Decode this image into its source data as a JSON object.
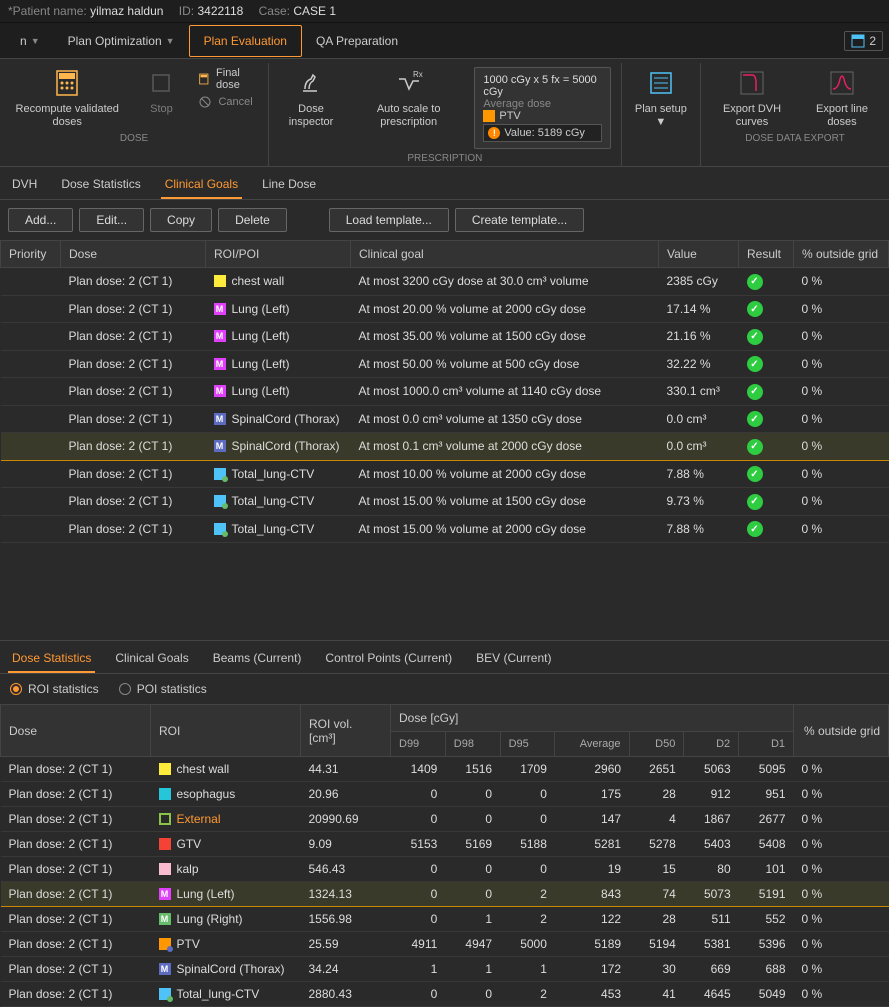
{
  "patient": {
    "name_label": "*Patient name:",
    "name": "yilmaz haldun",
    "id_label": "ID:",
    "id": "3422118",
    "case_label": "Case:",
    "case": "CASE 1"
  },
  "nav": {
    "opt": "Plan Optimization",
    "eval": "Plan Evaluation",
    "qa": "QA Preparation",
    "badge_count": "2"
  },
  "ribbon": {
    "recompute": "Recompute validated doses",
    "stop": "Stop",
    "final_dose": "Final dose",
    "cancel": "Cancel",
    "dose_label": "DOSE",
    "dose_inspector": "Dose inspector",
    "auto_scale": "Auto scale to prescription",
    "prescription_label": "PRESCRIPTION",
    "rx_line": "1000 cGy x 5 fx = 5000 cGy",
    "avg_dose": "Average dose",
    "ptv": "PTV",
    "value_line": "Value: 5189 cGy",
    "plan_setup": "Plan setup",
    "export_dvh": "Export DVH curves",
    "export_line": "Export line doses",
    "export_label": "DOSE DATA EXPORT"
  },
  "sub_tabs": {
    "dvh": "DVH",
    "dose_stats": "Dose Statistics",
    "clinical_goals": "Clinical Goals",
    "line_dose": "Line Dose"
  },
  "actions": {
    "add": "Add...",
    "edit": "Edit...",
    "copy": "Copy",
    "delete": "Delete",
    "load": "Load template...",
    "create": "Create template..."
  },
  "goals_headers": {
    "priority": "Priority",
    "dose": "Dose",
    "roi": "ROI/POI",
    "goal": "Clinical goal",
    "value": "Value",
    "result": "Result",
    "outside": "% outside grid"
  },
  "goals": [
    {
      "dose": "Plan dose: 2 (CT 1)",
      "roi": "chest wall",
      "color": "#ffeb3b",
      "style": "solid",
      "goal": "At most 3200 cGy dose at 30.0 cm³ volume",
      "value": "2385 cGy",
      "outside": "0 %"
    },
    {
      "dose": "Plan dose: 2 (CT 1)",
      "roi": "Lung (Left)",
      "color": "#e040fb",
      "style": "m",
      "goal": "At most 20.00 % volume at 2000 cGy dose",
      "value": "17.14 %",
      "outside": "0 %"
    },
    {
      "dose": "Plan dose: 2 (CT 1)",
      "roi": "Lung (Left)",
      "color": "#e040fb",
      "style": "m",
      "goal": "At most 35.00 % volume at 1500 cGy dose",
      "value": "21.16 %",
      "outside": "0 %"
    },
    {
      "dose": "Plan dose: 2 (CT 1)",
      "roi": "Lung (Left)",
      "color": "#e040fb",
      "style": "m",
      "goal": "At most 50.00 % volume at 500 cGy dose",
      "value": "32.22 %",
      "outside": "0 %"
    },
    {
      "dose": "Plan dose: 2 (CT 1)",
      "roi": "Lung (Left)",
      "color": "#e040fb",
      "style": "m",
      "goal": "At most 1000.0 cm³ volume at 1140 cGy dose",
      "value": "330.1 cm³",
      "outside": "0 %"
    },
    {
      "dose": "Plan dose: 2 (CT 1)",
      "roi": "SpinalCord (Thorax)",
      "color": "#5c6bc0",
      "style": "m",
      "goal": "At most 0.0 cm³ volume at 1350 cGy dose",
      "value": "0.0 cm³",
      "outside": "0 %"
    },
    {
      "dose": "Plan dose: 2 (CT 1)",
      "roi": "SpinalCord (Thorax)",
      "color": "#5c6bc0",
      "style": "m",
      "goal": "At most 0.1 cm³ volume at 2000 cGy dose",
      "value": "0.0 cm³",
      "outside": "0 %",
      "selected": true
    },
    {
      "dose": "Plan dose: 2 (CT 1)",
      "roi": "Total_lung-CTV",
      "color": "#4fc3f7",
      "style": "dot",
      "dot": "#66bb6a",
      "goal": "At most 10.00 % volume at 2000 cGy dose",
      "value": "7.88 %",
      "outside": "0 %"
    },
    {
      "dose": "Plan dose: 2 (CT 1)",
      "roi": "Total_lung-CTV",
      "color": "#4fc3f7",
      "style": "dot",
      "dot": "#66bb6a",
      "goal": "At most 15.00 % volume at 1500 cGy dose",
      "value": "9.73 %",
      "outside": "0 %"
    },
    {
      "dose": "Plan dose: 2 (CT 1)",
      "roi": "Total_lung-CTV",
      "color": "#4fc3f7",
      "style": "dot",
      "dot": "#66bb6a",
      "goal": "At most 15.00 % volume at 2000 cGy dose",
      "value": "7.88 %",
      "outside": "0 %"
    }
  ],
  "bottom_tabs": {
    "dose_stats": "Dose Statistics",
    "clinical_goals": "Clinical Goals",
    "beams": "Beams (Current)",
    "control_points": "Control Points (Current)",
    "bev": "BEV (Current)"
  },
  "radio": {
    "roi": "ROI statistics",
    "poi": "POI statistics"
  },
  "stats_headers": {
    "dose": "Dose",
    "roi": "ROI",
    "vol": "ROI vol. [cm³]",
    "dose_cgy": "Dose [cGy]",
    "d99": "D99",
    "d98": "D98",
    "d95": "D95",
    "avg": "Average",
    "d50": "D50",
    "d2": "D2",
    "d1": "D1",
    "outside": "% outside grid"
  },
  "stats": [
    {
      "dose": "Plan dose: 2 (CT 1)",
      "roi": "chest wall",
      "color": "#ffeb3b",
      "style": "solid",
      "vol": "44.31",
      "d99": "1409",
      "d98": "1516",
      "d95": "1709",
      "avg": "2960",
      "d50": "2651",
      "d2": "5063",
      "d1": "5095",
      "out": "0 %"
    },
    {
      "dose": "Plan dose: 2 (CT 1)",
      "roi": "esophagus",
      "color": "#26c6da",
      "style": "solid",
      "vol": "20.96",
      "d99": "0",
      "d98": "0",
      "d95": "0",
      "avg": "175",
      "d50": "28",
      "d2": "912",
      "d1": "951",
      "out": "0 %"
    },
    {
      "dose": "Plan dose: 2 (CT 1)",
      "roi": "External",
      "color": "#8bc34a",
      "style": "outline",
      "vol": "20990.69",
      "d99": "0",
      "d98": "0",
      "d95": "0",
      "avg": "147",
      "d50": "4",
      "d2": "1867",
      "d1": "2677",
      "out": "0 %",
      "external": true
    },
    {
      "dose": "Plan dose: 2 (CT 1)",
      "roi": "GTV",
      "color": "#f44336",
      "style": "solid",
      "vol": "9.09",
      "d99": "5153",
      "d98": "5169",
      "d95": "5188",
      "avg": "5281",
      "d50": "5278",
      "d2": "5403",
      "d1": "5408",
      "out": "0 %"
    },
    {
      "dose": "Plan dose: 2 (CT 1)",
      "roi": "kalp",
      "color": "#f8bbd0",
      "style": "solid",
      "vol": "546.43",
      "d99": "0",
      "d98": "0",
      "d95": "0",
      "avg": "19",
      "d50": "15",
      "d2": "80",
      "d1": "101",
      "out": "0 %"
    },
    {
      "dose": "Plan dose: 2 (CT 1)",
      "roi": "Lung (Left)",
      "color": "#e040fb",
      "style": "m",
      "vol": "1324.13",
      "d99": "0",
      "d98": "0",
      "d95": "2",
      "avg": "843",
      "d50": "74",
      "d2": "5073",
      "d1": "5191",
      "out": "0 %",
      "selected": true
    },
    {
      "dose": "Plan dose: 2 (CT 1)",
      "roi": "Lung (Right)",
      "color": "#66bb6a",
      "style": "m",
      "vol": "1556.98",
      "d99": "0",
      "d98": "1",
      "d95": "2",
      "avg": "122",
      "d50": "28",
      "d2": "511",
      "d1": "552",
      "out": "0 %"
    },
    {
      "dose": "Plan dose: 2 (CT 1)",
      "roi": "PTV",
      "color": "#ff9800",
      "style": "dot",
      "dot": "#5c6bc0",
      "vol": "25.59",
      "d99": "4911",
      "d98": "4947",
      "d95": "5000",
      "avg": "5189",
      "d50": "5194",
      "d2": "5381",
      "d1": "5396",
      "out": "0 %"
    },
    {
      "dose": "Plan dose: 2 (CT 1)",
      "roi": "SpinalCord (Thorax)",
      "color": "#5c6bc0",
      "style": "m",
      "vol": "34.24",
      "d99": "1",
      "d98": "1",
      "d95": "1",
      "avg": "172",
      "d50": "30",
      "d2": "669",
      "d1": "688",
      "out": "0 %"
    },
    {
      "dose": "Plan dose: 2 (CT 1)",
      "roi": "Total_lung-CTV",
      "color": "#4fc3f7",
      "style": "dot",
      "dot": "#66bb6a",
      "vol": "2880.43",
      "d99": "0",
      "d98": "0",
      "d95": "2",
      "avg": "453",
      "d50": "41",
      "d2": "4645",
      "d1": "5049",
      "out": "0 %"
    }
  ]
}
